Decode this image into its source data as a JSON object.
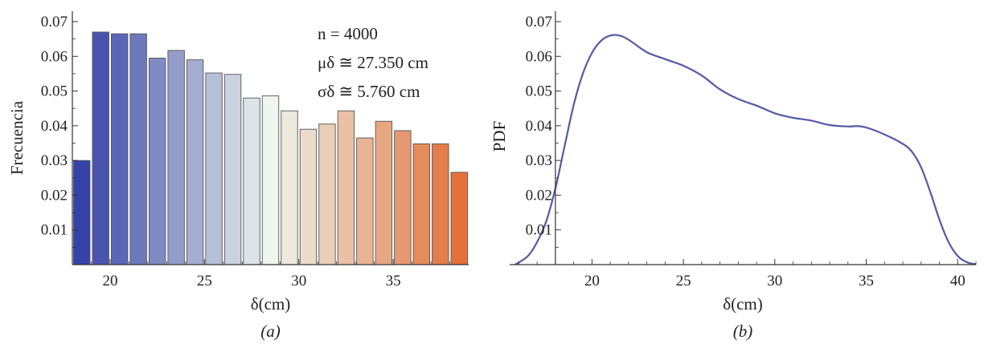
{
  "chart_data": [
    {
      "type": "bar",
      "panel_label": "(a)",
      "xlabel": "δ(cm)",
      "ylabel": "Frecuencia",
      "xlim": [
        18,
        39
      ],
      "ylim": [
        0,
        0.073
      ],
      "xticks": [
        "20",
        "25",
        "30",
        "35"
      ],
      "yticks": [
        "0.01",
        "0.02",
        "0.03",
        "0.04",
        "0.05",
        "0.06",
        "0.07"
      ],
      "bin_width": 1,
      "bin_starts": [
        18,
        19,
        20,
        21,
        22,
        23,
        24,
        25,
        26,
        27,
        28,
        29,
        30,
        31,
        32,
        33,
        34,
        35,
        36,
        37,
        38
      ],
      "values": [
        0.03,
        0.067,
        0.0665,
        0.0665,
        0.0595,
        0.0617,
        0.059,
        0.0552,
        0.0548,
        0.048,
        0.0486,
        0.0443,
        0.039,
        0.0405,
        0.0443,
        0.0365,
        0.0413,
        0.0386,
        0.0348,
        0.0348,
        0.0266
      ],
      "color_scale": {
        "low": "#3543a8",
        "mid": "#eef6ee",
        "high": "#e3713a"
      },
      "annotations": {
        "n": "n = 4000",
        "mu": "μδ ≅ 27.350 cm",
        "sigma": "σδ ≅ 5.760 cm"
      }
    },
    {
      "type": "line",
      "panel_label": "(b)",
      "xlabel": "δ(cm)",
      "ylabel": "PDF",
      "xlim": [
        15.5,
        41
      ],
      "ylim": [
        0,
        0.073
      ],
      "xticks": [
        "20",
        "25",
        "30",
        "35",
        "40"
      ],
      "yticks": [
        "0.01",
        "0.02",
        "0.03",
        "0.04",
        "0.05",
        "0.06",
        "0.07"
      ],
      "line_color": "#5559a8",
      "x": [
        15.8,
        16.5,
        17.0,
        17.5,
        18.0,
        18.5,
        19.0,
        19.5,
        20.0,
        20.5,
        21.0,
        21.5,
        22.0,
        23.0,
        24.0,
        25.0,
        26.0,
        27.0,
        28.0,
        29.0,
        30.0,
        31.0,
        32.0,
        33.0,
        34.0,
        34.5,
        35.0,
        36.0,
        37.0,
        37.5,
        38.0,
        38.5,
        39.0,
        39.5,
        40.0,
        40.5,
        41.0
      ],
      "y": [
        0.0,
        0.0025,
        0.0065,
        0.0125,
        0.022,
        0.034,
        0.046,
        0.055,
        0.061,
        0.0645,
        0.066,
        0.066,
        0.0648,
        0.0612,
        0.0592,
        0.0573,
        0.0545,
        0.0505,
        0.0477,
        0.0458,
        0.0436,
        0.0423,
        0.0415,
        0.0402,
        0.0398,
        0.0399,
        0.0395,
        0.0375,
        0.0348,
        0.0325,
        0.028,
        0.021,
        0.013,
        0.0065,
        0.0025,
        0.0007,
        0.0001
      ]
    }
  ]
}
